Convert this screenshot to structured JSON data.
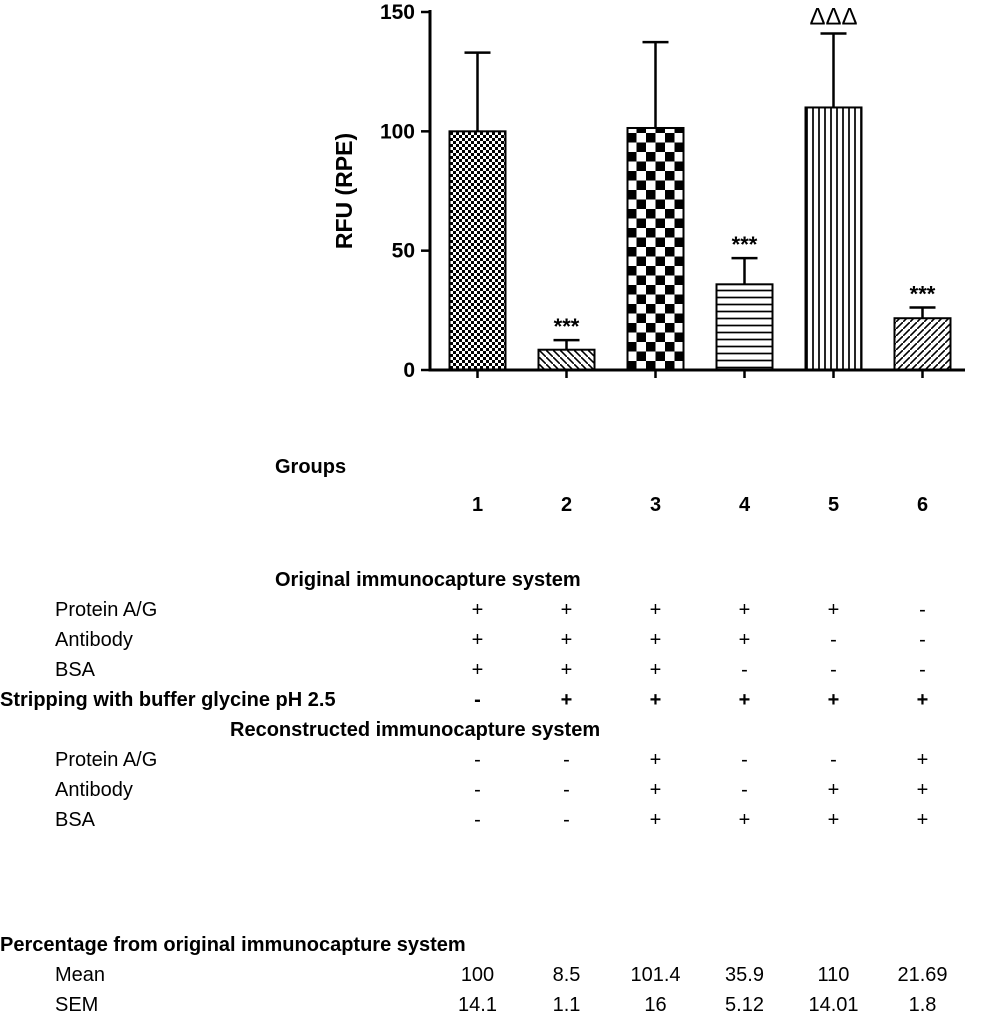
{
  "chart_data": {
    "type": "bar",
    "title": "",
    "xlabel": "",
    "ylabel": "RFU (RPE)",
    "ylim": [
      0,
      150
    ],
    "yticks": [
      0,
      50,
      100,
      150
    ],
    "grid": false,
    "legend": "none",
    "categories": [
      "1",
      "2",
      "3",
      "4",
      "5",
      "6"
    ],
    "values": [
      100,
      8.5,
      101.4,
      35.9,
      110,
      21.69
    ],
    "errors_upper": [
      33,
      4,
      36,
      11,
      31,
      4.5
    ],
    "annotations": [
      "",
      "***",
      "",
      "***",
      "ΔΔΔ",
      "***"
    ],
    "bar_patterns": [
      "fine-checker",
      "diag-down",
      "coarse-checker",
      "horizontal-lines",
      "vertical-lines",
      "diag-up"
    ],
    "bar_outline_color": "#000000",
    "background": "#ffffff"
  },
  "groups": {
    "label": "Groups",
    "numbers": [
      "1",
      "2",
      "3",
      "4",
      "5",
      "6"
    ]
  },
  "conditions": {
    "rows": [
      {
        "id": "original-system-header",
        "type": "header",
        "text": "Original immunocapture system"
      },
      {
        "id": "original-protein-ag",
        "type": "row",
        "label": "Protein A/G",
        "values": [
          "+",
          "+",
          "+",
          "+",
          "+",
          "-"
        ]
      },
      {
        "id": "original-antibody",
        "type": "row",
        "label": "Antibody",
        "values": [
          "+",
          "+",
          "+",
          "+",
          "-",
          "-"
        ]
      },
      {
        "id": "original-bsa",
        "type": "row",
        "label": "BSA",
        "values": [
          "+",
          "+",
          "+",
          "-",
          "-",
          "-"
        ]
      },
      {
        "id": "stripping-row",
        "type": "row-bold",
        "label": "Stripping with buffer glycine pH 2.5",
        "values": [
          "-",
          "+",
          "+",
          "+",
          "+",
          "+"
        ]
      },
      {
        "id": "reconstructed-system-header",
        "type": "header",
        "text": "Reconstructed immunocapture system"
      },
      {
        "id": "reconstructed-protein-ag",
        "type": "row",
        "label": "Protein A/G",
        "values": [
          "-",
          "-",
          "+",
          "-",
          "-",
          "+"
        ]
      },
      {
        "id": "reconstructed-antibody",
        "type": "row",
        "label": "Antibody",
        "values": [
          "-",
          "-",
          "+",
          "-",
          "+",
          "+"
        ]
      },
      {
        "id": "reconstructed-bsa",
        "type": "row",
        "label": "BSA",
        "values": [
          "-",
          "-",
          "+",
          "+",
          "+",
          "+"
        ]
      }
    ]
  },
  "statistics": {
    "header": "Percentage from original immunocapture system",
    "rows": [
      {
        "id": "mean-row",
        "label": "Mean",
        "values": [
          "100",
          "8.5",
          "101.4",
          "35.9",
          "110",
          "21.69"
        ]
      },
      {
        "id": "sem-row",
        "label": "SEM",
        "values": [
          "14.1",
          "1.1",
          "16",
          "5.12",
          "14.01",
          "1.8"
        ]
      }
    ]
  }
}
